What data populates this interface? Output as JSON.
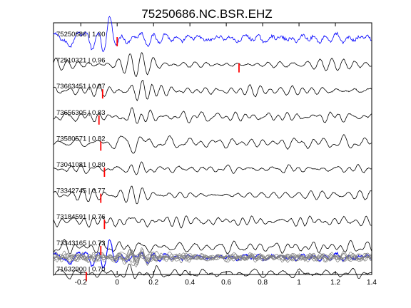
{
  "chart_data": {
    "type": "line",
    "title": "75250686.NC.BSR.EHZ",
    "xlabel": "",
    "ylabel": "",
    "xlim": [
      -0.35,
      1.4
    ],
    "xticks": [
      "-0.2",
      "0",
      "0.2",
      "0.4",
      "0.6",
      "0.8",
      "1",
      "1.2",
      "1.4"
    ],
    "xtick_values": [
      -0.2,
      0,
      0.2,
      0.4,
      0.6,
      0.8,
      1.0,
      1.2,
      1.4
    ],
    "grid": false,
    "colors": {
      "reference": "#0000ff",
      "trace": "#000000",
      "stack": "#808080",
      "pick": "#ff0000"
    },
    "series": [
      {
        "label": "75250686 | 1.00",
        "pick": 0.0
      },
      {
        "label": "72510321 | 0.96",
        "pick": 0.67
      },
      {
        "label": "73663451 | 0.87",
        "pick": -0.08
      },
      {
        "label": "73656305 | 0.83",
        "pick": -0.1
      },
      {
        "label": "73580571 | 0.82",
        "pick": -0.09
      },
      {
        "label": "73041081 | 0.80",
        "pick": -0.07
      },
      {
        "label": "73342745 | 0.77",
        "pick": -0.09
      },
      {
        "label": "73184591 | 0.76",
        "pick": -0.07
      },
      {
        "label": "73343165 | 0.73",
        "pick": -0.09
      },
      {
        "label": "71632900 | 0.70",
        "pick": -0.17
      }
    ]
  }
}
